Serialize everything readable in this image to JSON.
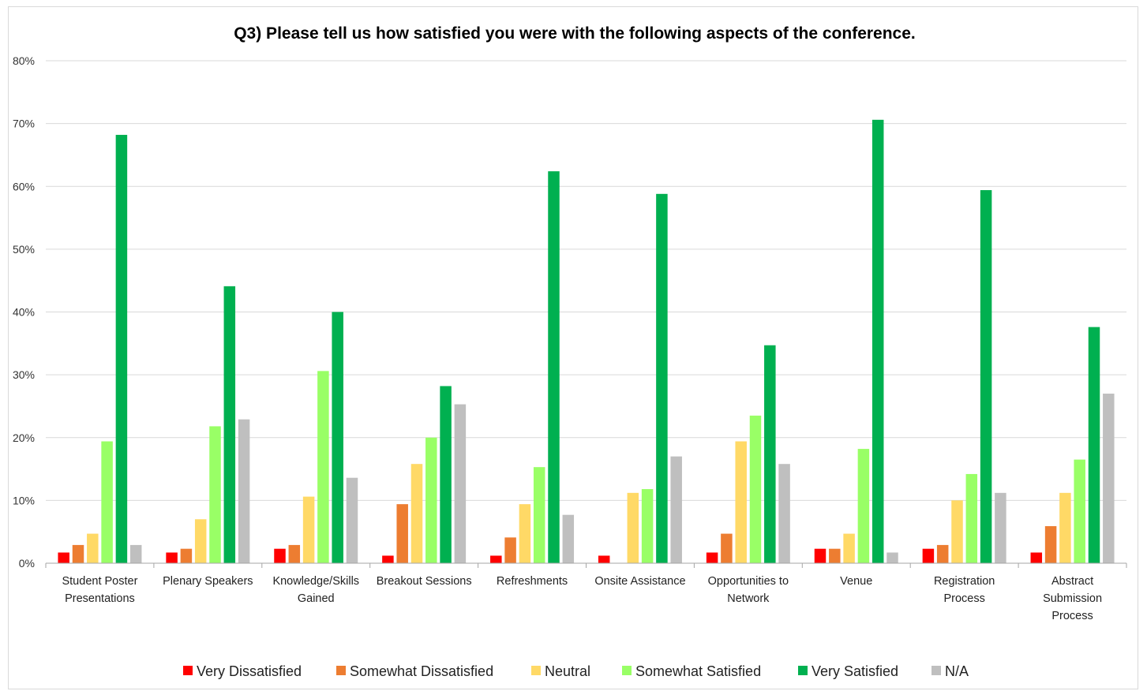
{
  "chart_data": {
    "type": "bar",
    "title": "Q3) Please tell us how satisfied you were with the following aspects of the conference.",
    "xlabel": "",
    "ylabel": "",
    "ylim": [
      0,
      80
    ],
    "y_ticks": [
      "0%",
      "10%",
      "20%",
      "30%",
      "40%",
      "50%",
      "60%",
      "70%",
      "80%"
    ],
    "y_tick_values": [
      0,
      10,
      20,
      30,
      40,
      50,
      60,
      70,
      80
    ],
    "grid": true,
    "legend_position": "bottom",
    "categories": [
      [
        "Student Poster",
        "Presentations"
      ],
      [
        "Plenary Speakers"
      ],
      [
        "Knowledge/Skills",
        "Gained"
      ],
      [
        "Breakout Sessions"
      ],
      [
        "Refreshments"
      ],
      [
        "Onsite Assistance"
      ],
      [
        "Opportunities to",
        "Network"
      ],
      [
        "Venue"
      ],
      [
        "Registration",
        "Process"
      ],
      [
        "Abstract",
        "Submission",
        "Process"
      ]
    ],
    "series": [
      {
        "name": "Very Dissatisfied",
        "color": "#ff0000",
        "values": [
          1.7,
          1.7,
          2.3,
          1.2,
          1.2,
          1.2,
          1.7,
          2.3,
          2.3,
          1.7
        ]
      },
      {
        "name": "Somewhat Dissatisfied",
        "color": "#ed7d31",
        "values": [
          2.9,
          2.3,
          2.9,
          9.4,
          4.1,
          0,
          4.7,
          2.3,
          2.9,
          5.9
        ]
      },
      {
        "name": "Neutral",
        "color": "#ffd966",
        "values": [
          4.7,
          7.0,
          10.6,
          15.8,
          9.4,
          11.2,
          19.4,
          4.7,
          10.0,
          11.2
        ]
      },
      {
        "name": "Somewhat Satisfied",
        "color": "#99ff66",
        "values": [
          19.4,
          21.8,
          30.6,
          20.0,
          15.3,
          11.8,
          23.5,
          18.2,
          14.2,
          16.5
        ]
      },
      {
        "name": "Very Satisfied",
        "color": "#00b050",
        "values": [
          68.2,
          44.1,
          40.0,
          28.2,
          62.4,
          58.8,
          34.7,
          70.6,
          59.4,
          37.6
        ]
      },
      {
        "name": "N/A",
        "color": "#bfbfbf",
        "values": [
          2.9,
          22.9,
          13.6,
          25.3,
          7.7,
          17.0,
          15.8,
          1.7,
          11.2,
          27.0
        ]
      }
    ]
  }
}
